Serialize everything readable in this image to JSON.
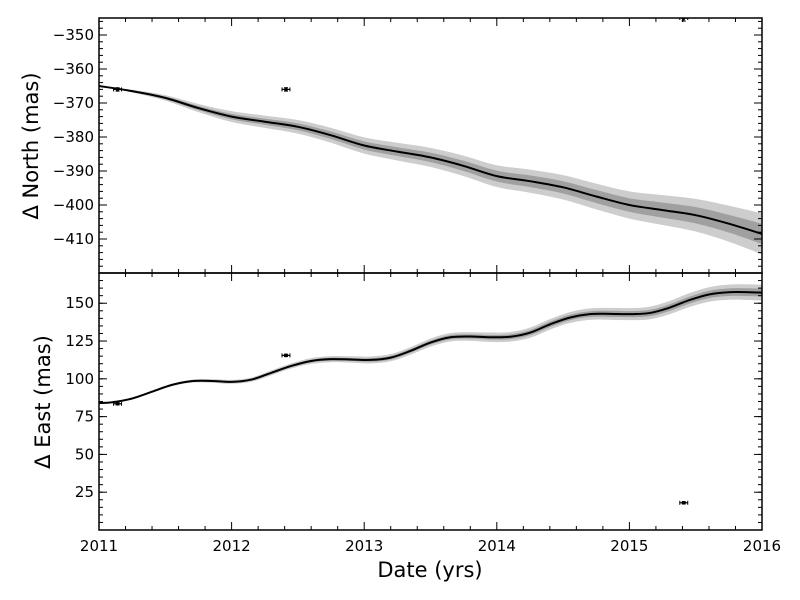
{
  "chart_data": [
    {
      "type": "line",
      "panel": "top",
      "ylabel": "Δ North (mas)",
      "xlabel": "",
      "xlim": [
        2011,
        2016
      ],
      "ylim": [
        -420,
        -345
      ],
      "yticks": [
        -350,
        -360,
        -370,
        -380,
        -390,
        -400,
        -410
      ],
      "ytick_labels": [
        "−350",
        "−360",
        "−370",
        "−380",
        "−390",
        "−400",
        "−410"
      ],
      "grid": false,
      "model_curve": {
        "x": [
          2011.0,
          2011.25,
          2011.5,
          2011.75,
          2012.0,
          2012.25,
          2012.5,
          2012.75,
          2013.0,
          2013.25,
          2013.5,
          2013.75,
          2014.0,
          2014.25,
          2014.5,
          2014.75,
          2015.0,
          2015.25,
          2015.5,
          2015.75,
          2016.0
        ],
        "y": [
          -365.0,
          -366.5,
          -368.5,
          -371.5,
          -374.0,
          -375.5,
          -377.0,
          -379.5,
          -382.5,
          -384.3,
          -386.0,
          -388.5,
          -391.5,
          -393.0,
          -394.8,
          -397.5,
          -400.0,
          -401.5,
          -403.0,
          -405.5,
          -408.5
        ],
        "inner_band_halfwidth": [
          0.0,
          0.2,
          0.4,
          0.6,
          0.8,
          0.9,
          1.0,
          1.1,
          1.2,
          1.3,
          1.4,
          1.5,
          1.6,
          1.7,
          1.8,
          1.9,
          2.0,
          2.2,
          2.4,
          2.6,
          3.0
        ],
        "outer_band_halfwidth": [
          0.0,
          0.4,
          0.8,
          1.2,
          1.6,
          1.8,
          2.0,
          2.2,
          2.4,
          2.6,
          2.8,
          3.0,
          3.2,
          3.4,
          3.6,
          3.8,
          4.0,
          4.4,
          4.8,
          5.3,
          6.0
        ]
      },
      "observations": [
        {
          "x": 2011.14,
          "y": -366.0,
          "xerr": 0.03,
          "yerr": 0.5
        },
        {
          "x": 2012.41,
          "y": -366.0,
          "xerr": 0.03,
          "yerr": 0.5
        },
        {
          "x": 2015.41,
          "y": -345.0,
          "xerr": 0.03,
          "yerr": 0.9
        }
      ]
    },
    {
      "type": "line",
      "panel": "bottom",
      "ylabel": "Δ East (mas)",
      "xlabel": "Date (yrs)",
      "xlim": [
        2011,
        2016
      ],
      "ylim": [
        0,
        170
      ],
      "yticks": [
        25,
        50,
        75,
        100,
        125,
        150
      ],
      "ytick_labels": [
        "25",
        "50",
        "75",
        "100",
        "125",
        "150"
      ],
      "xticks": [
        2011,
        2012,
        2013,
        2014,
        2015,
        2016
      ],
      "xtick_labels": [
        "2011",
        "2012",
        "2013",
        "2014",
        "2015",
        "2016"
      ],
      "grid": false,
      "model_curve": {
        "x": [
          2011.0,
          2011.1,
          2011.25,
          2011.4,
          2011.55,
          2011.7,
          2011.85,
          2012.0,
          2012.15,
          2012.3,
          2012.45,
          2012.6,
          2012.75,
          2012.9,
          2013.05,
          2013.2,
          2013.35,
          2013.5,
          2013.65,
          2013.8,
          2013.95,
          2014.1,
          2014.25,
          2014.4,
          2014.55,
          2014.7,
          2014.85,
          2015.0,
          2015.15,
          2015.3,
          2015.45,
          2015.6,
          2015.75,
          2015.9,
          2016.0
        ],
        "y": [
          84.0,
          84.5,
          87.0,
          91.5,
          96.0,
          98.5,
          98.6,
          98.0,
          99.5,
          104.0,
          108.5,
          111.8,
          113.0,
          112.8,
          112.5,
          114.0,
          118.5,
          124.0,
          127.5,
          128.0,
          127.5,
          127.8,
          130.5,
          136.0,
          140.5,
          142.8,
          143.0,
          142.8,
          143.5,
          147.0,
          152.0,
          155.8,
          157.3,
          157.3,
          157.0
        ],
        "inner_band_halfwidth": [
          0.0,
          0.1,
          0.2,
          0.3,
          0.4,
          0.5,
          0.6,
          0.6,
          0.7,
          0.8,
          0.8,
          0.9,
          1.0,
          1.0,
          1.1,
          1.2,
          1.2,
          1.3,
          1.4,
          1.4,
          1.5,
          1.6,
          1.7,
          1.8,
          1.8,
          1.9,
          2.0,
          2.0,
          2.1,
          2.2,
          2.3,
          2.4,
          2.5,
          2.6,
          2.6
        ],
        "outer_band_halfwidth": [
          0.0,
          0.2,
          0.4,
          0.6,
          0.8,
          1.0,
          1.2,
          1.3,
          1.4,
          1.6,
          1.7,
          1.9,
          2.0,
          2.1,
          2.3,
          2.4,
          2.5,
          2.7,
          2.8,
          2.9,
          3.1,
          3.2,
          3.4,
          3.5,
          3.6,
          3.8,
          3.9,
          4.0,
          4.2,
          4.4,
          4.6,
          4.8,
          5.0,
          5.2,
          5.3
        ]
      },
      "observations": [
        {
          "x": 2011.14,
          "y": 83.5,
          "xerr": 0.03,
          "yerr": 0.8
        },
        {
          "x": 2012.41,
          "y": 115.5,
          "xerr": 0.03,
          "yerr": 0.8
        },
        {
          "x": 2015.41,
          "y": 18.0,
          "xerr": 0.03,
          "yerr": 0.8
        }
      ]
    }
  ],
  "colors": {
    "model_line": "#000000",
    "inner_band": "#a0a0a0",
    "outer_band": "#cdcdcd",
    "points": "#000000",
    "axes": "#000000",
    "background": "#ffffff"
  }
}
